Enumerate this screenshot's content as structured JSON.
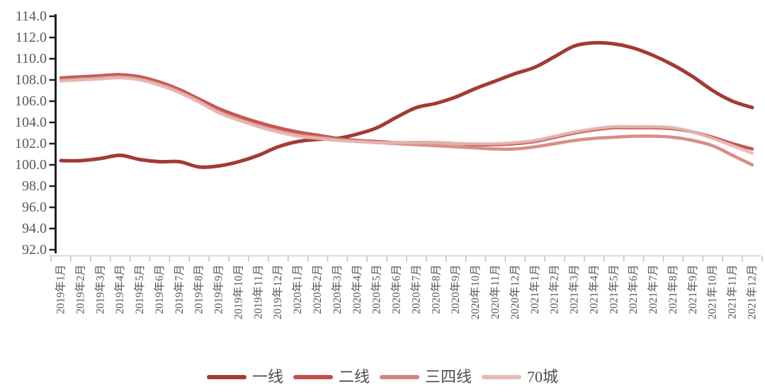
{
  "chart_data": {
    "type": "line",
    "title": "",
    "xlabel": "",
    "ylabel": "",
    "grid": false,
    "legend_position": "bottom",
    "y_axis": {
      "min": 92.0,
      "max": 114.0,
      "step": 2.0,
      "ticks": [
        "92.0",
        "94.0",
        "96.0",
        "98.0",
        "100.0",
        "102.0",
        "104.0",
        "106.0",
        "108.0",
        "110.0",
        "112.0",
        "114.0"
      ]
    },
    "x_categories": [
      "2019年1月",
      "2019年2月",
      "2019年3月",
      "2019年4月",
      "2019年5月",
      "2019年6月",
      "2019年7月",
      "2019年8月",
      "2019年9月",
      "2019年10月",
      "2019年11月",
      "2019年12月",
      "2020年1月",
      "2020年2月",
      "2020年3月",
      "2020年4月",
      "2020年5月",
      "2020年6月",
      "2020年7月",
      "2020年8月",
      "2020年9月",
      "2020年10月",
      "2020年11月",
      "2020年12月",
      "2021年1月",
      "2021年2月",
      "2021年3月",
      "2021年4月",
      "2021年5月",
      "2021年6月",
      "2021年7月",
      "2021年8月",
      "2021年9月",
      "2021年10月",
      "2021年11月",
      "2021年12月"
    ],
    "series": [
      {
        "name": "一线",
        "color": "#A33A34",
        "values": [
          100.4,
          100.4,
          100.6,
          100.9,
          100.5,
          100.3,
          100.3,
          99.8,
          99.9,
          100.3,
          100.9,
          101.7,
          102.2,
          102.4,
          102.5,
          102.9,
          103.5,
          104.5,
          105.4,
          105.8,
          106.4,
          107.2,
          107.9,
          108.6,
          109.2,
          110.2,
          111.2,
          111.5,
          111.4,
          111.0,
          110.3,
          109.4,
          108.3,
          107.0,
          106.0,
          105.4
        ]
      },
      {
        "name": "二线",
        "color": "#C04E48",
        "values": [
          108.2,
          108.3,
          108.4,
          108.5,
          108.3,
          107.8,
          107.1,
          106.2,
          105.3,
          104.6,
          104.0,
          103.5,
          103.1,
          102.8,
          102.5,
          102.3,
          102.2,
          102.1,
          102.1,
          102.1,
          102.0,
          101.9,
          101.9,
          102.0,
          102.2,
          102.6,
          103.0,
          103.3,
          103.5,
          103.5,
          103.5,
          103.4,
          103.1,
          102.6,
          102.0,
          101.5
        ]
      },
      {
        "name": "三四线",
        "color": "#D6837D",
        "values": [
          108.0,
          108.1,
          108.2,
          108.3,
          108.1,
          107.6,
          106.9,
          106.0,
          105.0,
          104.3,
          103.7,
          103.2,
          102.8,
          102.6,
          102.4,
          102.2,
          102.1,
          102.0,
          101.9,
          101.8,
          101.7,
          101.6,
          101.5,
          101.5,
          101.7,
          102.0,
          102.3,
          102.5,
          102.6,
          102.7,
          102.7,
          102.6,
          102.3,
          101.8,
          100.9,
          100.0
        ]
      },
      {
        "name": "70城",
        "color": "#E6B9B4",
        "values": [
          107.9,
          108.0,
          108.1,
          108.2,
          108.0,
          107.5,
          106.8,
          105.9,
          104.9,
          104.2,
          103.6,
          103.1,
          102.7,
          102.5,
          102.3,
          102.2,
          102.1,
          102.1,
          102.1,
          102.1,
          102.0,
          102.0,
          102.0,
          102.1,
          102.3,
          102.7,
          103.1,
          103.4,
          103.6,
          103.6,
          103.6,
          103.5,
          103.1,
          102.5,
          101.8,
          101.1
        ]
      }
    ]
  },
  "colors": {
    "background": "#ffffff",
    "y_axis_line": "#1f1f1f",
    "y_tick": "#1f1f1f",
    "x_axis_line": "#d9d9d9",
    "x_tick": "#c4c4c4",
    "axis_label_text": "#595959",
    "legend_text": "#4d4d4d"
  }
}
